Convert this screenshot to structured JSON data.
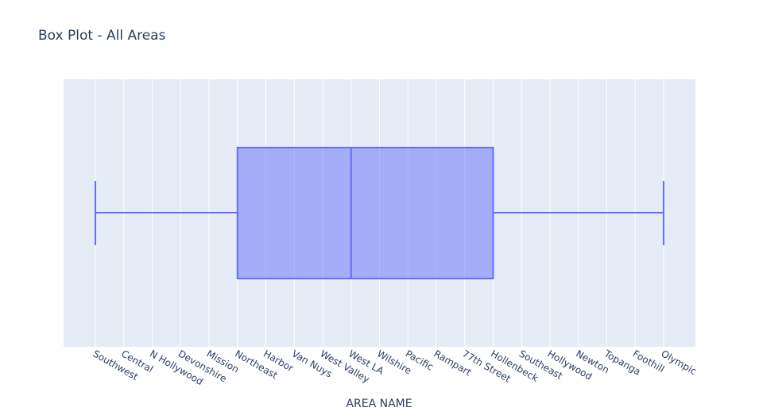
{
  "chart_data": {
    "type": "box",
    "title": "Box Plot - All Areas",
    "x_label": "AREA NAME",
    "categories": [
      "Southwest",
      "Central",
      "N Hollywood",
      "Devonshire",
      "Mission",
      "Northeast",
      "Harbor",
      "Van Nuys",
      "West Valley",
      "West LA",
      "Wilshire",
      "Pacific",
      "Rampart",
      "77th Street",
      "Hollenbeck",
      "Southeast",
      "Hollywood",
      "Newton",
      "Topanga",
      "Foothill",
      "Olympic"
    ],
    "orientation": "horizontal",
    "box": {
      "min": 0,
      "q1": 5,
      "median": 9,
      "q3": 14,
      "max": 20
    },
    "color": "#636efa",
    "xlim": [
      -1.12,
      21.12
    ],
    "grid": true
  }
}
